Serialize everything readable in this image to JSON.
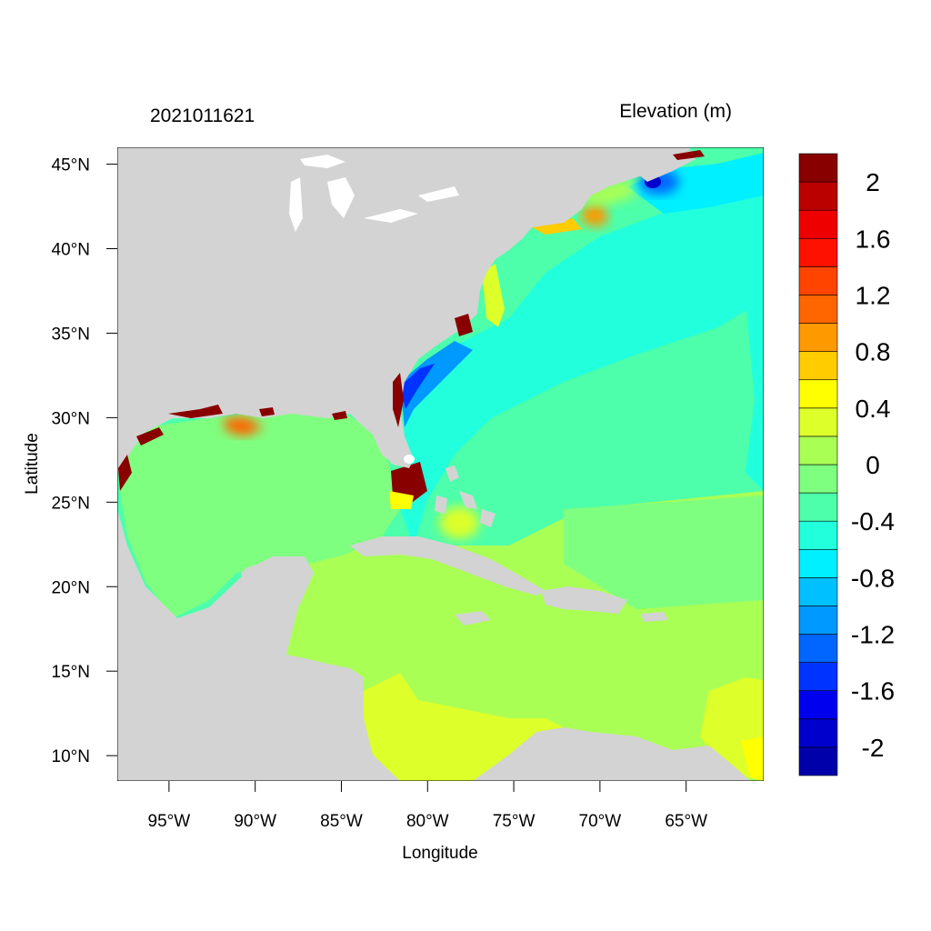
{
  "header": {
    "left_title": "2021011621",
    "right_title": "Elevation (m)"
  },
  "axes": {
    "xlabel": "Longitude",
    "ylabel": "Latitude",
    "xlim": [
      -98,
      -60.5
    ],
    "ylim": [
      8.5,
      46
    ],
    "x_ticks": [
      {
        "value": -95,
        "label": "95°W"
      },
      {
        "value": -90,
        "label": "90°W"
      },
      {
        "value": -85,
        "label": "85°W"
      },
      {
        "value": -80,
        "label": "80°W"
      },
      {
        "value": -75,
        "label": "75°W"
      },
      {
        "value": -70,
        "label": "70°W"
      },
      {
        "value": -65,
        "label": "65°W"
      }
    ],
    "y_ticks": [
      {
        "value": 45,
        "label": "45°N"
      },
      {
        "value": 40,
        "label": "40°N"
      },
      {
        "value": 35,
        "label": "35°N"
      },
      {
        "value": 30,
        "label": "30°N"
      },
      {
        "value": 25,
        "label": "25°N"
      },
      {
        "value": 20,
        "label": "20°N"
      },
      {
        "value": 15,
        "label": "15°N"
      },
      {
        "value": 10,
        "label": "10°N"
      }
    ]
  },
  "colorbar": {
    "colors": [
      "#0000aa",
      "#0000cc",
      "#0000ee",
      "#0033ff",
      "#0066ff",
      "#0099ff",
      "#00c0ff",
      "#00f0ff",
      "#22ffdd",
      "#4dffaa",
      "#7fff7f",
      "#aaff55",
      "#ddff2a",
      "#ffff00",
      "#ffcc00",
      "#ff9900",
      "#ff6600",
      "#ff4400",
      "#ff1100",
      "#ee0000",
      "#bb0000",
      "#880000"
    ],
    "labels": [
      {
        "text": "2",
        "boundary": 20
      },
      {
        "text": "1.6",
        "boundary": 18
      },
      {
        "text": "1.2",
        "boundary": 16
      },
      {
        "text": "0.8",
        "boundary": 14
      },
      {
        "text": "0.4",
        "boundary": 12
      },
      {
        "text": "0",
        "boundary": 10
      },
      {
        "text": "-0.4",
        "boundary": 8
      },
      {
        "text": "-0.8",
        "boundary": 6
      },
      {
        "text": "-1.2",
        "boundary": 4
      },
      {
        "text": "-1.6",
        "boundary": 2
      },
      {
        "text": "-2",
        "boundary": 0
      }
    ]
  },
  "map": {
    "land_color": "#d3d3d3",
    "lake_color": "#ffffff"
  }
}
